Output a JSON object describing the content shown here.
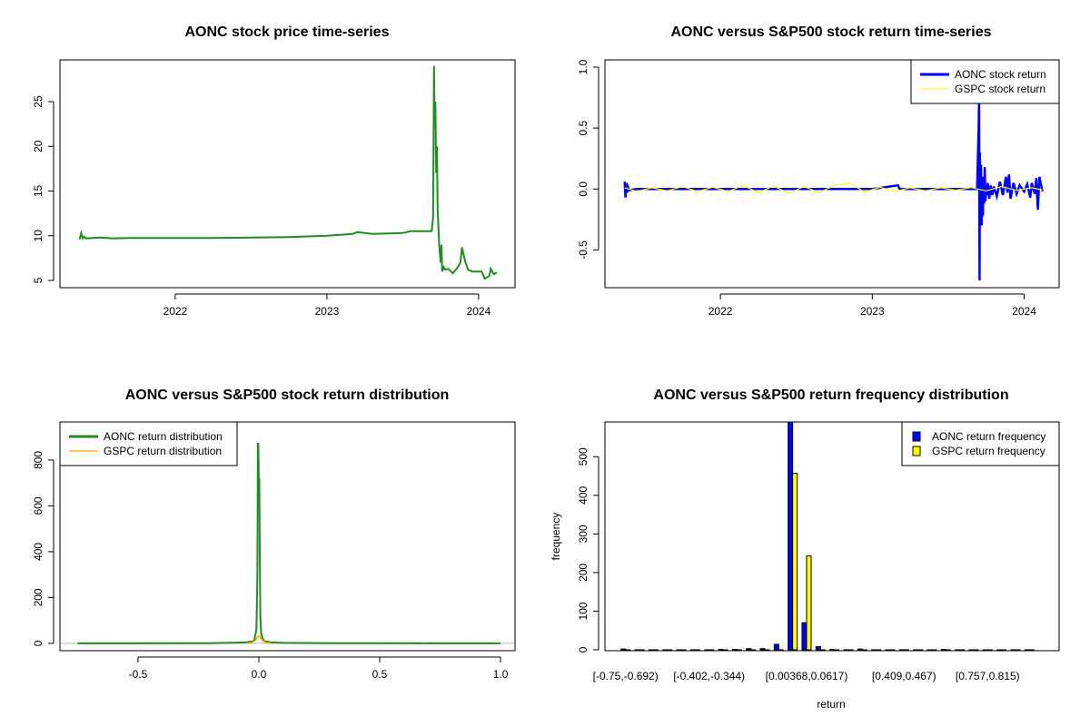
{
  "chart_data": [
    {
      "type": "line",
      "title": "AONC stock price time-series",
      "xlabel": "",
      "ylabel": "",
      "xlim": [
        2021.24,
        2024.24
      ],
      "ylim": [
        4.19,
        29.67
      ],
      "xticks": [
        {
          "v": 2022,
          "label": "2022"
        },
        {
          "v": 2023,
          "label": "2023"
        },
        {
          "v": 2024,
          "label": "2024"
        }
      ],
      "yticks": [
        {
          "v": 5,
          "label": "5"
        },
        {
          "v": 10,
          "label": "10"
        },
        {
          "v": 15,
          "label": "15"
        },
        {
          "v": 20,
          "label": "20"
        },
        {
          "v": 25,
          "label": "25"
        }
      ],
      "series": [
        {
          "name": "AONC",
          "color": "#228B22",
          "x": [
            2021.37,
            2021.38,
            2021.39,
            2021.4,
            2021.41,
            2021.5,
            2021.6,
            2021.7,
            2021.8,
            2022.0,
            2022.25,
            2022.5,
            2022.75,
            2023.0,
            2023.17,
            2023.2,
            2023.3,
            2023.5,
            2023.55,
            2023.69,
            2023.7,
            2023.703,
            2023.706,
            2023.71,
            2023.715,
            2023.72,
            2023.725,
            2023.73,
            2023.74,
            2023.75,
            2023.755,
            2023.76,
            2023.77,
            2023.78,
            2023.8,
            2023.83,
            2023.86,
            2023.88,
            2023.89,
            2023.91,
            2023.93,
            2023.96,
            2024.02,
            2024.04,
            2024.07,
            2024.08,
            2024.1,
            2024.12
          ],
          "y": [
            9.6,
            10.3,
            9.7,
            9.9,
            9.7,
            9.8,
            9.7,
            9.75,
            9.75,
            9.75,
            9.75,
            9.8,
            9.85,
            10.0,
            10.2,
            10.4,
            10.2,
            10.3,
            10.5,
            10.5,
            12,
            20,
            29,
            22,
            25,
            17,
            20,
            13,
            9,
            7,
            9,
            6,
            6.5,
            6.2,
            6.3,
            5.8,
            6.4,
            7.0,
            8.7,
            7.2,
            6.2,
            6.0,
            6.0,
            5.2,
            5.5,
            6.3,
            5.7,
            5.9
          ]
        }
      ]
    },
    {
      "type": "line",
      "title": "AONC versus S&P500 stock return time-series",
      "xlim": [
        2021.24,
        2024.23
      ],
      "ylim": [
        -0.81,
        1.06
      ],
      "xticks": [
        {
          "v": 2022,
          "label": "2022"
        },
        {
          "v": 2023,
          "label": "2023"
        },
        {
          "v": 2024,
          "label": "2024"
        }
      ],
      "yticks": [
        {
          "v": -0.5,
          "label": "-0.5"
        },
        {
          "v": 0,
          "label": "0.0"
        },
        {
          "v": 0.5,
          "label": "0.5"
        },
        {
          "v": 1.0,
          "label": "1.0"
        }
      ],
      "legend": {
        "position": "top-right",
        "entries": [
          {
            "label": "AONC stock return",
            "color": "#0000FF"
          },
          {
            "label": "GSPC stock return",
            "color": "#FFFF00"
          }
        ]
      },
      "series": [
        {
          "name": "AONC stock return",
          "color": "#0000FF",
          "x": [
            2021.37,
            2021.375,
            2021.38,
            2021.385,
            2021.39,
            2021.4,
            2021.45,
            2021.6,
            2022.0,
            2022.5,
            2023.0,
            2023.17,
            2023.18,
            2023.5,
            2023.69,
            2023.7,
            2023.703,
            2023.706,
            2023.708,
            2023.712,
            2023.716,
            2023.72,
            2023.724,
            2023.728,
            2023.732,
            2023.736,
            2023.74,
            2023.745,
            2023.75,
            2023.755,
            2023.76,
            2023.77,
            2023.78,
            2023.79,
            2023.8,
            2023.82,
            2023.84,
            2023.86,
            2023.88,
            2023.89,
            2023.9,
            2023.91,
            2023.93,
            2023.95,
            2023.97,
            2024.0,
            2024.02,
            2024.04,
            2024.05,
            2024.07,
            2024.08,
            2024.09,
            2024.1,
            2024.12
          ],
          "y": [
            0.06,
            -0.07,
            0.05,
            -0.03,
            0.02,
            -0.01,
            0.0,
            0.0,
            0.0,
            0.0,
            0.0,
            0.03,
            0,
            0,
            0,
            0.5,
            0.75,
            -0.75,
            0.3,
            -0.2,
            0.2,
            -0.3,
            0.1,
            -0.22,
            0.05,
            -0.12,
            0.18,
            -0.1,
            0.02,
            -0.05,
            0.05,
            -0.08,
            0.03,
            -0.05,
            0.02,
            -0.06,
            0.06,
            -0.05,
            0.1,
            -0.03,
            0.12,
            -0.08,
            0.05,
            -0.04,
            0.03,
            -0.02,
            0.04,
            -0.07,
            0.05,
            -0.04,
            0.09,
            -0.17,
            0.1,
            -0.02
          ]
        },
        {
          "name": "GSPC stock return",
          "color": "#FFFF00",
          "x": [
            2021.37,
            2021.45,
            2021.55,
            2021.65,
            2021.75,
            2021.85,
            2021.95,
            2022.05,
            2022.15,
            2022.25,
            2022.35,
            2022.45,
            2022.55,
            2022.65,
            2022.75,
            2022.85,
            2022.95,
            2023.05,
            2023.15,
            2023.25,
            2023.35,
            2023.45,
            2023.55,
            2023.65,
            2023.75,
            2023.85,
            2023.95,
            2024.05,
            2024.12
          ],
          "y": [
            0.01,
            -0.02,
            0.01,
            -0.015,
            0.02,
            -0.02,
            0.015,
            -0.02,
            0.03,
            -0.03,
            0.025,
            -0.035,
            0.02,
            -0.03,
            0.03,
            0.05,
            -0.025,
            0.015,
            -0.02,
            0.01,
            -0.015,
            0.01,
            -0.01,
            0.012,
            -0.015,
            0.02,
            -0.012,
            0.01,
            -0.008
          ]
        }
      ]
    },
    {
      "type": "line",
      "title": "AONC versus S&P500 stock return distribution",
      "xlim": [
        -0.823,
        1.06
      ],
      "ylim": [
        -32,
        966
      ],
      "xticks": [
        {
          "v": -0.5,
          "label": "-0.5"
        },
        {
          "v": 0,
          "label": "0.0"
        },
        {
          "v": 0.5,
          "label": "0.5"
        },
        {
          "v": 1.0,
          "label": "1.0"
        }
      ],
      "yticks": [
        {
          "v": 0,
          "label": "0"
        },
        {
          "v": 200,
          "label": "200"
        },
        {
          "v": 400,
          "label": "400"
        },
        {
          "v": 600,
          "label": "600"
        },
        {
          "v": 800,
          "label": "800"
        }
      ],
      "legend": {
        "position": "top-left",
        "entries": [
          {
            "label": "AONC return distribution",
            "color": "#228B22"
          },
          {
            "label": "GSPC return distribution",
            "color": "#FFA500"
          }
        ]
      },
      "series": [
        {
          "name": "AONC return distribution",
          "color": "#228B22",
          "x": [
            -0.75,
            -0.2,
            -0.1,
            -0.05,
            -0.02,
            -0.01,
            -0.006,
            -0.004,
            -0.002,
            0,
            0.002,
            0.004,
            0.006,
            0.01,
            0.02,
            0.05,
            0.1,
            0.3,
            1.0
          ],
          "y": [
            0,
            1,
            3,
            5,
            10,
            60,
            300,
            875,
            870,
            700,
            720,
            400,
            120,
            40,
            10,
            4,
            2,
            0.5,
            0
          ]
        },
        {
          "name": "GSPC return distribution",
          "color": "#FFA500",
          "x": [
            -0.05,
            -0.03,
            -0.015,
            -0.005,
            0,
            0.005,
            0.015,
            0.03,
            0.05
          ],
          "y": [
            0,
            3,
            12,
            28,
            32,
            28,
            12,
            3,
            0
          ]
        }
      ]
    },
    {
      "type": "bar",
      "title": "AONC versus S&P500 return frequency distribution",
      "xlabel": "return",
      "ylabel": "frequency",
      "ylim": [
        0,
        590
      ],
      "bin_start": -0.75,
      "bin_width": 0.05803,
      "n_bins": 30,
      "xtick_labels": [
        {
          "bin": 0,
          "label": "[-0.75,-0.692)"
        },
        {
          "bin": 6,
          "label": "[-0.402,-0.344)"
        },
        {
          "bin": 13,
          "label": "[0.00368,0.0617)"
        },
        {
          "bin": 20,
          "label": "[0.409,0.467)"
        },
        {
          "bin": 26,
          "label": "[0.757,0.815)"
        }
      ],
      "yticks": [
        {
          "v": 0,
          "label": "0"
        },
        {
          "v": 100,
          "label": "100"
        },
        {
          "v": 200,
          "label": "200"
        },
        {
          "v": 300,
          "label": "300"
        },
        {
          "v": 400,
          "label": "400"
        },
        {
          "v": 500,
          "label": "500"
        }
      ],
      "legend": {
        "position": "top-right",
        "entries": [
          {
            "label": "AONC return frequency",
            "color": "#0000FF"
          },
          {
            "label": "GSPC return frequency",
            "color": "#FFFF00"
          }
        ]
      },
      "series": [
        {
          "name": "AONC return frequency",
          "color": "#0000FF",
          "values": [
            2,
            0,
            0,
            0,
            0,
            0,
            0,
            1,
            1,
            3,
            3,
            14,
            640,
            70,
            8,
            1,
            0,
            2,
            0,
            0,
            0,
            0,
            0,
            1,
            0,
            0,
            0,
            0,
            0,
            0
          ]
        },
        {
          "name": "GSPC return frequency",
          "color": "#FFFF00",
          "values": [
            0,
            0,
            0,
            0,
            0,
            0,
            0,
            0,
            0,
            0,
            0,
            0,
            457,
            243,
            0,
            0,
            0,
            0,
            0,
            0,
            0,
            0,
            0,
            0,
            0,
            0,
            0,
            0,
            0,
            0
          ]
        }
      ]
    }
  ]
}
